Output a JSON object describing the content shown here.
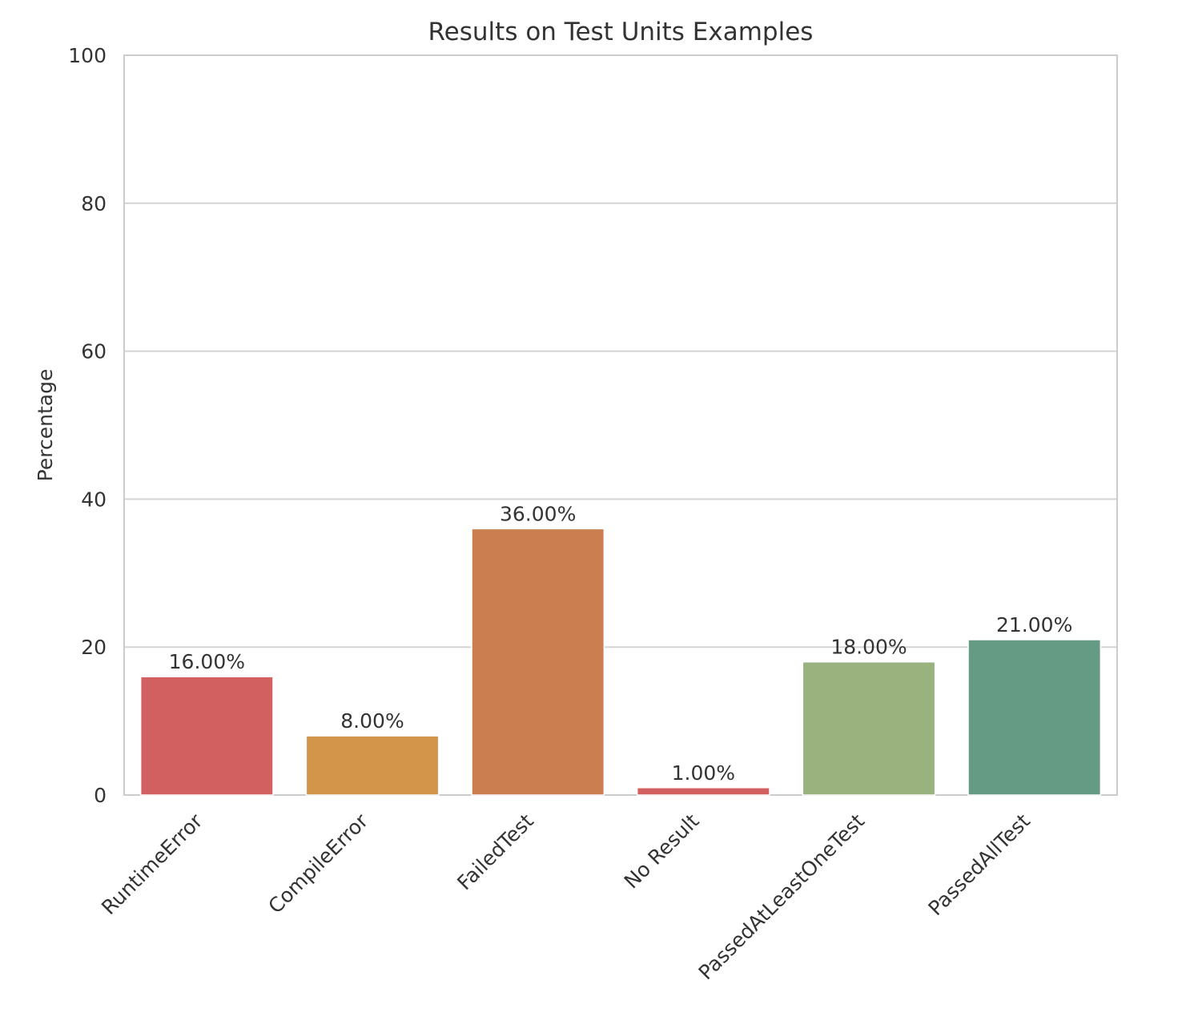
{
  "chart_data": {
    "type": "bar",
    "title": "Results on Test Units Examples",
    "xlabel": "",
    "ylabel": "Percentage",
    "ylim": [
      0,
      100
    ],
    "yticks": [
      0,
      20,
      40,
      60,
      80,
      100
    ],
    "grid": true,
    "categories": [
      "RuntimeError",
      "CompileError",
      "FailedTest",
      "No Result",
      "PassedAtLeastOneTest",
      "PassedAllTest"
    ],
    "values": [
      16,
      8,
      36,
      1,
      18,
      21
    ],
    "data_labels": [
      "16.00%",
      "8.00%",
      "36.00%",
      "1.00%",
      "18.00%",
      "21.00%"
    ],
    "colors": [
      "#d36060",
      "#d3954a",
      "#cb7e50",
      "#d36060",
      "#99b27e",
      "#659b85"
    ]
  }
}
